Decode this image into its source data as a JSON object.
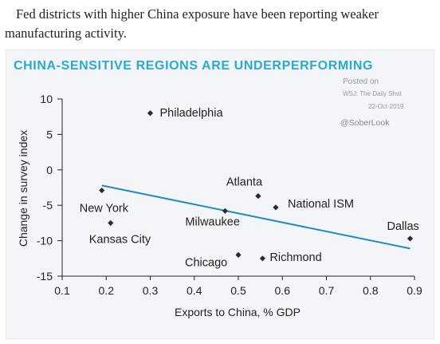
{
  "caption": "Fed districts with higher China exposure have been reporting weaker manufacturing activity.",
  "chart_data": {
    "type": "scatter",
    "title": "CHINA-SENSITIVE REGIONS ARE UNDERPERFORMING",
    "xlabel": "Exports to China, % GDP",
    "ylabel": "Change in survey index",
    "xlim": [
      0.1,
      0.9
    ],
    "ylim": [
      -15,
      10
    ],
    "xticks": [
      "0.1",
      "0.2",
      "0.3",
      "0.4",
      "0.5",
      "0.6",
      "0.7",
      "0.8",
      "0.9"
    ],
    "yticks": [
      "10",
      "5",
      "0",
      "-5",
      "-10",
      "-15"
    ],
    "points": [
      {
        "label": "Philadelphia",
        "x": 0.3,
        "y": 8.0
      },
      {
        "label": "New York",
        "x": 0.19,
        "y": -2.9
      },
      {
        "label": "Kansas City",
        "x": 0.21,
        "y": -7.5
      },
      {
        "label": "Atlanta",
        "x": 0.545,
        "y": -3.7
      },
      {
        "label": "National ISM",
        "x": 0.585,
        "y": -5.3
      },
      {
        "label": "Milwaukee",
        "x": 0.47,
        "y": -5.8
      },
      {
        "label": "Dallas",
        "x": 0.89,
        "y": -9.7
      },
      {
        "label": "Chicago",
        "x": 0.5,
        "y": -12.0
      },
      {
        "label": "Richmond",
        "x": 0.555,
        "y": -12.5
      }
    ],
    "trendline": {
      "x": [
        0.19,
        0.89
      ],
      "y": [
        -2.2,
        -11.1
      ]
    },
    "grid": false,
    "legend": "none",
    "colors": {
      "title": "#2aa9cf",
      "trendline": "#1f8ac4",
      "points": "#2b2b2b",
      "axis": "#222222",
      "source": "#999999"
    }
  },
  "source": {
    "posted_on": "Posted on",
    "outlet": "WSJ: The Daily Shot",
    "date": "22-Oct-2019",
    "handle": "@SoberLook"
  }
}
